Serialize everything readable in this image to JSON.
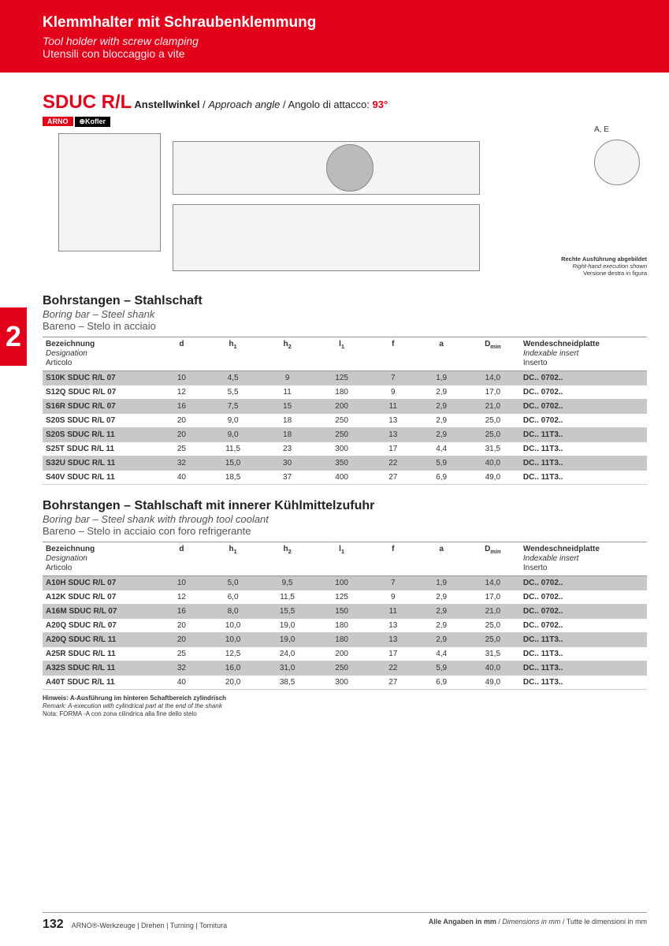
{
  "header": {
    "title_de": "Klemmhalter mit Schraubenklemmung",
    "title_en": "Tool holder with screw clamping",
    "title_it": "Utensili con bloccaggio a vite"
  },
  "product": {
    "code": "SDUC R/L",
    "approach_de": "Anstellwinkel",
    "approach_en": "Approach angle",
    "approach_it": "Angolo di attacco",
    "approach_val": "93°",
    "badge1": "ARNO",
    "badge2": "⊕Kofler"
  },
  "diagram": {
    "ae_label": "A, E",
    "rh_de": "Rechte Ausführung abgebildet",
    "rh_en": "Right-hand execution shown",
    "rh_it": "Versione destra in figura"
  },
  "side_tab": "2",
  "section1": {
    "title": "Bohrstangen – Stahlschaft",
    "sub_en": "Boring bar – Steel shank",
    "sub_it": "Bareno – Stelo in acciaio"
  },
  "section2": {
    "title": "Bohrstangen – Stahlschaft mit innerer Kühlmittelzufuhr",
    "sub_en": "Boring bar – Steel shank with through tool coolant",
    "sub_it": "Bareno – Stelo in acciaio con foro refrigerante"
  },
  "columns": {
    "designation_de": "Bezeichnung",
    "designation_en": "Designation",
    "designation_it": "Articolo",
    "d": "d",
    "h1": "h₁",
    "h2": "h₂",
    "l1": "l₁",
    "f": "f",
    "a": "a",
    "dmin": "Dₘᵢₙ",
    "insert_de": "Wendeschneidplatte",
    "insert_en": "Indexable insert",
    "insert_it": "Inserto"
  },
  "table1": [
    {
      "name": "S10K SDUC R/L 07",
      "d": "10",
      "h1": "4,5",
      "h2": "9",
      "l1": "125",
      "f": "7",
      "a": "1,9",
      "dmin": "14,0",
      "ins": "DC.. 0702..",
      "shade": true
    },
    {
      "name": "S12Q SDUC R/L 07",
      "d": "12",
      "h1": "5,5",
      "h2": "11",
      "l1": "180",
      "f": "9",
      "a": "2,9",
      "dmin": "17,0",
      "ins": "DC.. 0702..",
      "shade": false
    },
    {
      "name": "S16R SDUC R/L 07",
      "d": "16",
      "h1": "7,5",
      "h2": "15",
      "l1": "200",
      "f": "11",
      "a": "2,9",
      "dmin": "21,0",
      "ins": "DC.. 0702..",
      "shade": true
    },
    {
      "name": "S20S SDUC R/L 07",
      "d": "20",
      "h1": "9,0",
      "h2": "18",
      "l1": "250",
      "f": "13",
      "a": "2,9",
      "dmin": "25,0",
      "ins": "DC.. 0702..",
      "shade": false
    },
    {
      "name": "S20S SDUC R/L 11",
      "d": "20",
      "h1": "9,0",
      "h2": "18",
      "l1": "250",
      "f": "13",
      "a": "2,9",
      "dmin": "25,0",
      "ins": "DC.. 11T3..",
      "shade": true
    },
    {
      "name": "S25T SDUC R/L 11",
      "d": "25",
      "h1": "11,5",
      "h2": "23",
      "l1": "300",
      "f": "17",
      "a": "4,4",
      "dmin": "31,5",
      "ins": "DC.. 11T3..",
      "shade": false
    },
    {
      "name": "S32U SDUC R/L 11",
      "d": "32",
      "h1": "15,0",
      "h2": "30",
      "l1": "350",
      "f": "22",
      "a": "5,9",
      "dmin": "40,0",
      "ins": "DC.. 11T3..",
      "shade": true
    },
    {
      "name": "S40V SDUC R/L 11",
      "d": "40",
      "h1": "18,5",
      "h2": "37",
      "l1": "400",
      "f": "27",
      "a": "6,9",
      "dmin": "49,0",
      "ins": "DC.. 11T3..",
      "shade": false
    }
  ],
  "table2": [
    {
      "name": "A10H SDUC R/L 07",
      "d": "10",
      "h1": "5,0",
      "h2": "9,5",
      "l1": "100",
      "f": "7",
      "a": "1,9",
      "dmin": "14,0",
      "ins": "DC.. 0702..",
      "shade": true
    },
    {
      "name": "A12K SDUC R/L 07",
      "d": "12",
      "h1": "6,0",
      "h2": "11,5",
      "l1": "125",
      "f": "9",
      "a": "2,9",
      "dmin": "17,0",
      "ins": "DC.. 0702..",
      "shade": false
    },
    {
      "name": "A16M SDUC R/L 07",
      "d": "16",
      "h1": "8,0",
      "h2": "15,5",
      "l1": "150",
      "f": "11",
      "a": "2,9",
      "dmin": "21,0",
      "ins": "DC.. 0702..",
      "shade": true
    },
    {
      "name": "A20Q SDUC R/L 07",
      "d": "20",
      "h1": "10,0",
      "h2": "19,0",
      "l1": "180",
      "f": "13",
      "a": "2,9",
      "dmin": "25,0",
      "ins": "DC.. 0702..",
      "shade": false
    },
    {
      "name": "A20Q SDUC R/L 11",
      "d": "20",
      "h1": "10,0",
      "h2": "19,0",
      "l1": "180",
      "f": "13",
      "a": "2,9",
      "dmin": "25,0",
      "ins": "DC.. 11T3..",
      "shade": true
    },
    {
      "name": "A25R SDUC R/L 11",
      "d": "25",
      "h1": "12,5",
      "h2": "24,0",
      "l1": "200",
      "f": "17",
      "a": "4,4",
      "dmin": "31,5",
      "ins": "DC.. 11T3..",
      "shade": false
    },
    {
      "name": "A32S SDUC R/L 11",
      "d": "32",
      "h1": "16,0",
      "h2": "31,0",
      "l1": "250",
      "f": "22",
      "a": "5,9",
      "dmin": "40,0",
      "ins": "DC.. 11T3..",
      "shade": true
    },
    {
      "name": "A40T SDUC R/L 11",
      "d": "40",
      "h1": "20,0",
      "h2": "38,5",
      "l1": "300",
      "f": "27",
      "a": "6,9",
      "dmin": "49,0",
      "ins": "DC.. 11T3..",
      "shade": false
    }
  ],
  "remark": {
    "de": "Hinweis: A-Ausführung im hinteren Schaftbereich zylindrisch",
    "en": "Remark: A-execution with cylindrical part at the end of the shank",
    "it": "Nota: FORMA -A con zona cilindrica alla fine dello stelo"
  },
  "footer": {
    "page": "132",
    "left": "ARNO®-Werkzeuge | Drehen | Turning | Tornitura",
    "right_de": "Alle Angaben in mm",
    "right_en": "Dimensions in mm",
    "right_it": "Tutte le dimensioni in mm"
  }
}
